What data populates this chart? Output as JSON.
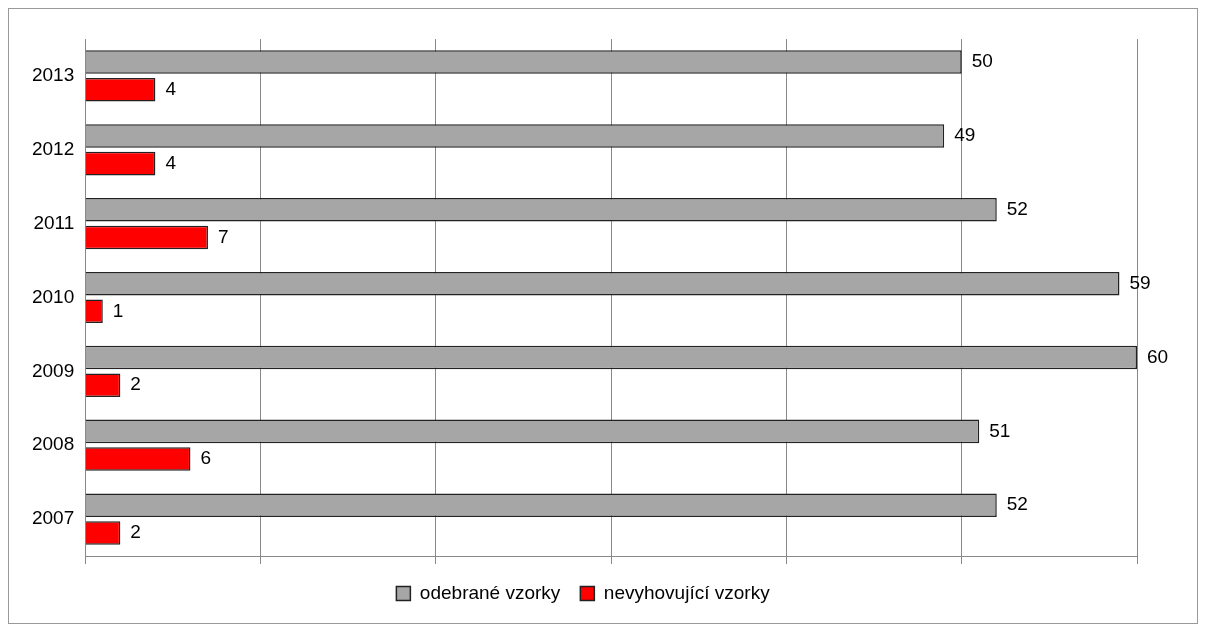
{
  "chart_data": {
    "type": "bar",
    "orientation": "horizontal",
    "categories": [
      "2013",
      "2012",
      "2011",
      "2010",
      "2009",
      "2008",
      "2007"
    ],
    "series": [
      {
        "name": "odebrané vzorky",
        "color": "#a6a6a6",
        "values": [
          50,
          49,
          52,
          59,
          60,
          51,
          52
        ]
      },
      {
        "name": "nevyhovující vzorky",
        "color": "#ff0000",
        "values": [
          4,
          4,
          7,
          1,
          2,
          6,
          2
        ]
      }
    ],
    "xlim": [
      0,
      60
    ],
    "xticks": [
      {
        "value": 0,
        "label": null
      },
      {
        "value": 10,
        "label": null
      },
      {
        "value": 20,
        "label": null
      },
      {
        "value": 30,
        "label": null
      },
      {
        "value": 40,
        "label": null
      },
      {
        "value": 50,
        "label": null
      },
      {
        "value": 60,
        "label": null
      }
    ],
    "tick_labels": "y",
    "grid": "x",
    "legend": "bottom",
    "data_labels": true
  }
}
